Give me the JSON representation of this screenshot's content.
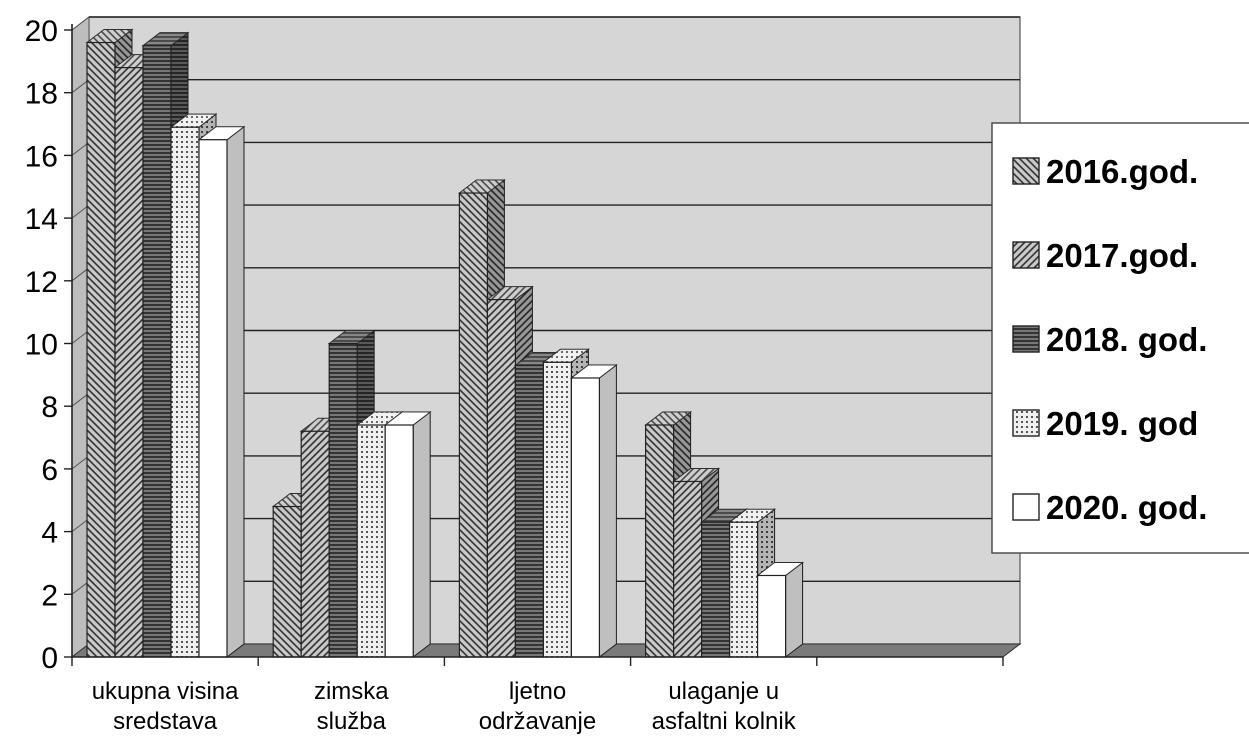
{
  "chart_data": {
    "type": "bar",
    "categories": [
      [
        "ukupna visina",
        "sredstava"
      ],
      [
        "zimska",
        "služba"
      ],
      [
        "ljetno",
        "održavanje"
      ],
      [
        "ulaganje u",
        "asfaltni kolnik"
      ]
    ],
    "series": [
      {
        "name": "2016.god.",
        "values": [
          19.6,
          4.8,
          14.8,
          7.4
        ],
        "pattern": "hatch-back"
      },
      {
        "name": "2017.god.",
        "values": [
          18.8,
          7.2,
          11.4,
          5.6
        ],
        "pattern": "hatch-fwd"
      },
      {
        "name": "2018. god.",
        "values": [
          19.5,
          10.0,
          9.3,
          4.3
        ],
        "pattern": "hlines"
      },
      {
        "name": "2019. god",
        "values": [
          16.9,
          7.4,
          9.4,
          4.3
        ],
        "pattern": "dots"
      },
      {
        "name": "2020. god.",
        "values": [
          16.5,
          7.4,
          8.9,
          2.6
        ],
        "pattern": "white"
      }
    ],
    "y_ticks": [
      "0",
      "2",
      "4",
      "6",
      "8",
      "10",
      "12",
      "14",
      "16",
      "18",
      "20"
    ],
    "ylim": [
      0,
      20
    ],
    "grid": true,
    "legend_position": "right"
  }
}
